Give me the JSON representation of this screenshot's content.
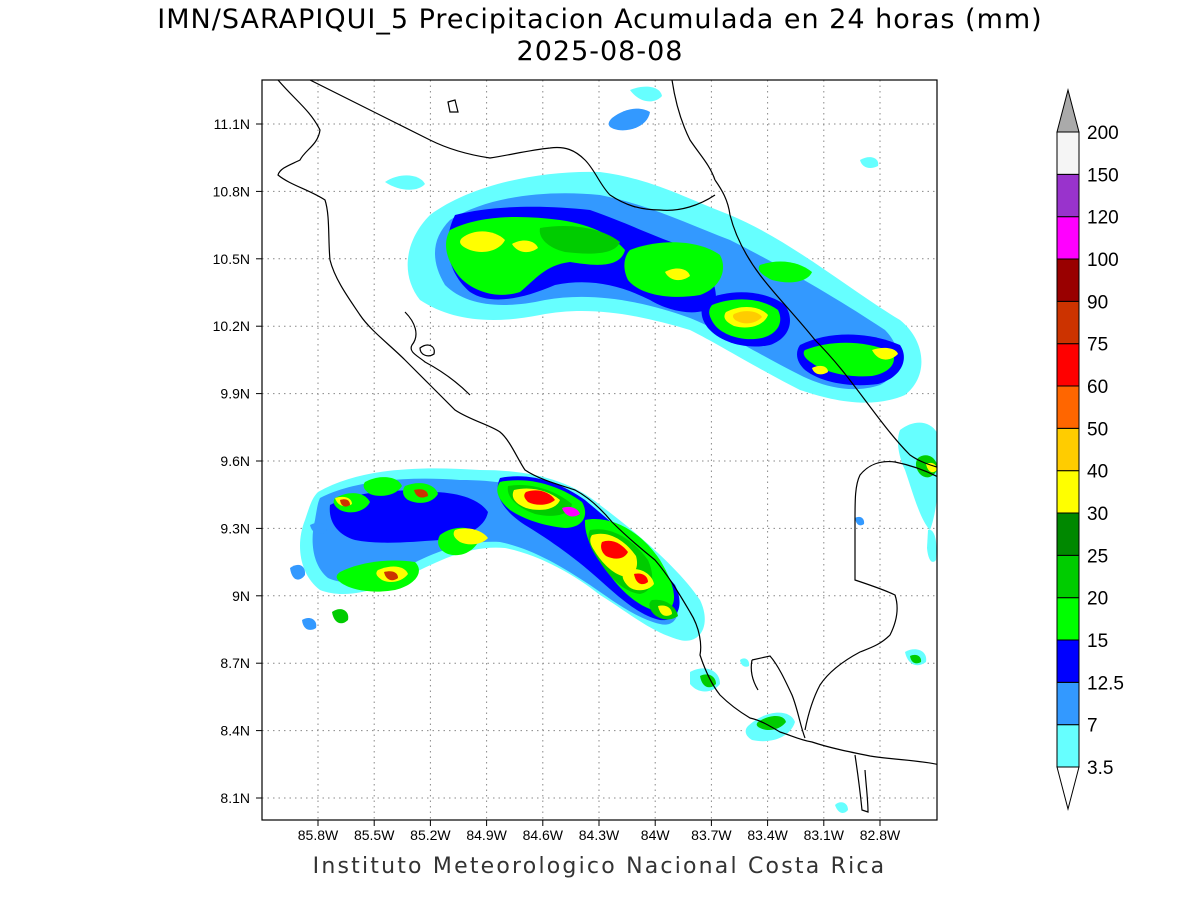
{
  "title": {
    "line1": "IMN/SARAPIQUI_5 Precipitacion Acumulada en 24 horas (mm)",
    "line2": "2025-08-08"
  },
  "footer": "Instituto Meteorologico Nacional Costa Rica",
  "axes": {
    "lon_ticks": [
      "85.8W",
      "85.5W",
      "85.2W",
      "84.9W",
      "84.6W",
      "84.3W",
      "84W",
      "83.7W",
      "83.4W",
      "83.1W",
      "82.8W"
    ],
    "lat_ticks": [
      "11.1N",
      "10.8N",
      "10.5N",
      "10.2N",
      "9.9N",
      "9.6N",
      "9.3N",
      "9N",
      "8.7N",
      "8.4N",
      "8.1N"
    ]
  },
  "colorbar": {
    "levels": [
      "3.5",
      "7",
      "12.5",
      "15",
      "20",
      "25",
      "30",
      "40",
      "50",
      "60",
      "75",
      "90",
      "100",
      "120",
      "150",
      "200"
    ],
    "colors": [
      "#66ffff",
      "#3399ff",
      "#0000ff",
      "#00ff00",
      "#00cc00",
      "#008800",
      "#ffff00",
      "#ffcc00",
      "#ff6600",
      "#ff0000",
      "#cc3300",
      "#990000",
      "#ff00ff",
      "#9933cc",
      "#f5f5f5",
      "#aaaaaa"
    ]
  }
}
